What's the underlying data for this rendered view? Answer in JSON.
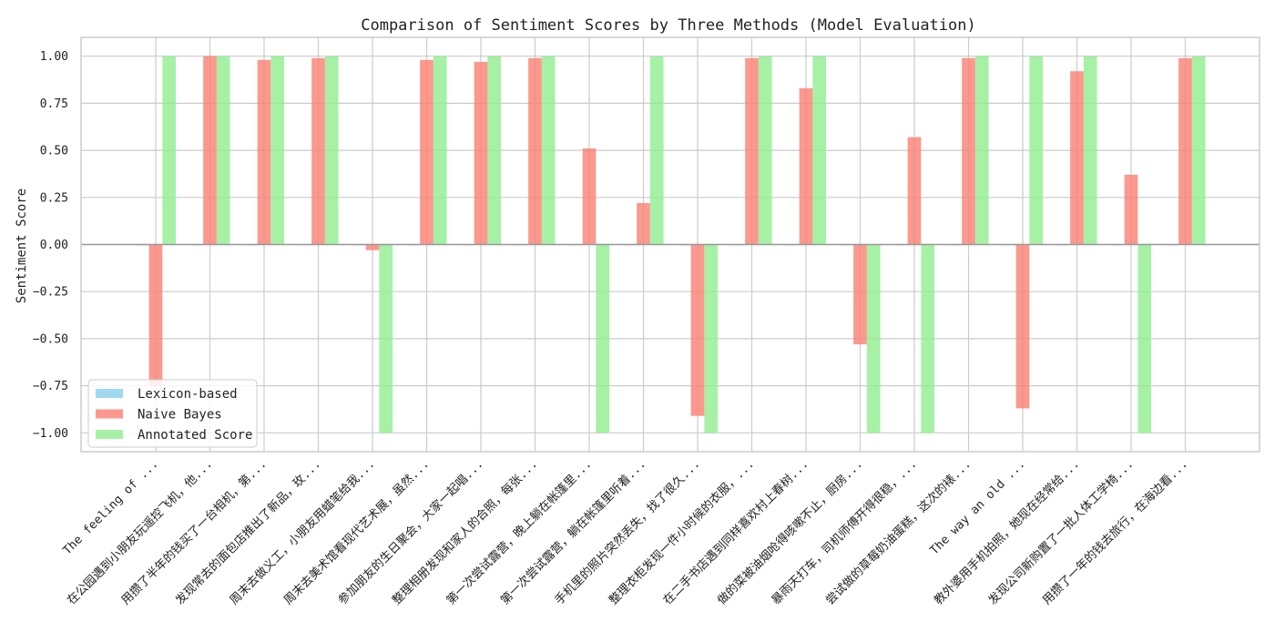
{
  "chart_data": {
    "type": "bar",
    "title": "Comparison of Sentiment Scores by Three Methods (Model Evaluation)",
    "xlabel": "",
    "ylabel": "Sentiment Score",
    "ylim": [
      -1.1,
      1.1
    ],
    "yticks": [
      1.0,
      0.75,
      0.5,
      0.25,
      0.0,
      -0.25,
      -0.5,
      -0.75,
      -1.0
    ],
    "ytick_labels": [
      "1.00",
      "0.75",
      "0.50",
      "0.25",
      "0.00",
      "−0.25",
      "−0.50",
      "−0.75",
      "−1.00"
    ],
    "grid": true,
    "legend_position": "lower-left",
    "colors": {
      "lexicon": "#87CEEB",
      "naive_bayes": "#FA8072",
      "annotated": "#90EE90",
      "grid": "#cccccc",
      "zero_line": "#999999",
      "axes_edge": "#cccccc"
    },
    "categories": [
      "The feeling of ...",
      "在公园遇到小朋友玩遥控飞机，他...",
      "用攒了半年的钱买了一台相机，第...",
      "发现常去的面包店推出了新品，玫...",
      "周末去做义工，小朋友用蜡笔给我...",
      "周末去美术馆看现代艺术展，虽然...",
      "参加朋友的生日聚会，大家一起唱...",
      "整理相册发现和家人的合照，每张...",
      "第一次尝试露营，晚上躺在帐篷里...",
      "第一次尝试露营，躺在帐篷里听着...",
      "手机里的照片突然丢失，找了很久...",
      "整理衣柜发现一件小时候的衣服，...",
      "在二手书店遇到同样喜欢村上春树...",
      "做的菜被油烟呛得咳嗽不止，厨房...",
      "暴雨天打车，司机师傅开得很稳，...",
      "尝试做的草莓奶油蛋糕，这次的裱...",
      "The way an old ...",
      "教外婆用手机拍照，她现在经常给...",
      "发现公司新购置了一批人体工学椅...",
      "用攒了一年的钱去旅行，在海边看..."
    ],
    "series": [
      {
        "name": "Lexicon-based",
        "key": "lexicon",
        "values": [
          0,
          0,
          0,
          0,
          0,
          0,
          0,
          0,
          0,
          0,
          0,
          0,
          0,
          0,
          0,
          0,
          0,
          0,
          0,
          0
        ]
      },
      {
        "name": "Naive Bayes",
        "key": "naive_bayes",
        "values": [
          -0.75,
          1.0,
          0.98,
          0.99,
          -0.03,
          0.98,
          0.97,
          0.99,
          0.51,
          0.22,
          -0.91,
          0.99,
          0.83,
          -0.53,
          0.57,
          0.99,
          -0.87,
          0.92,
          0.37,
          0.99
        ]
      },
      {
        "name": "Annotated Score",
        "key": "annotated",
        "values": [
          1,
          1,
          1,
          1,
          -1,
          1,
          1,
          1,
          -1,
          1,
          -1,
          1,
          1,
          -1,
          -1,
          1,
          1,
          1,
          -1,
          1
        ]
      }
    ]
  }
}
